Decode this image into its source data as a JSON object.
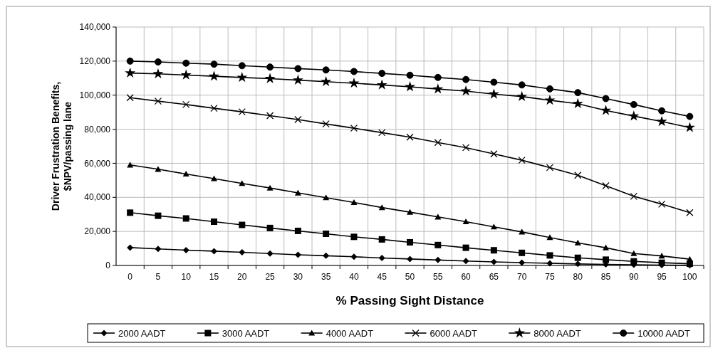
{
  "chart_data": {
    "type": "line",
    "xlabel": "% Passing Sight Distance",
    "ylabel": "Driver Frustration Benefits, $NPV/passing lane",
    "categories": [
      "0",
      "5",
      "10",
      "15",
      "20",
      "25",
      "30",
      "35",
      "40",
      "45",
      "50",
      "55",
      "60",
      "65",
      "70",
      "75",
      "80",
      "85",
      "90",
      "95",
      "100"
    ],
    "ylim": [
      0,
      140000
    ],
    "yticks": [
      {
        "value": 0,
        "label": "0"
      },
      {
        "value": 20000,
        "label": "20,000"
      },
      {
        "value": 40000,
        "label": "40,000"
      },
      {
        "value": 60000,
        "label": "60,000"
      },
      {
        "value": 80000,
        "label": "80,000"
      },
      {
        "value": 100000,
        "label": "100,000"
      },
      {
        "value": 120000,
        "label": "120,000"
      },
      {
        "value": 140000,
        "label": "140,000"
      }
    ],
    "grid": true,
    "legend": "bottom",
    "series": [
      {
        "name": "2000 AADT",
        "color": "#000000",
        "marker": "diamond",
        "values": [
          10500,
          9700,
          9000,
          8400,
          7700,
          7000,
          6300,
          5700,
          5100,
          4400,
          3800,
          3200,
          2600,
          2100,
          1700,
          1300,
          900,
          600,
          400,
          200,
          100
        ]
      },
      {
        "name": "3000 AADT",
        "color": "#000000",
        "marker": "square",
        "values": [
          31000,
          29200,
          27600,
          25700,
          23800,
          22000,
          20300,
          18600,
          16800,
          15300,
          13600,
          12000,
          10400,
          8900,
          7400,
          5900,
          4500,
          3400,
          2400,
          1600,
          1000
        ]
      },
      {
        "name": "4000 AADT",
        "color": "#000000",
        "marker": "triangle",
        "values": [
          59000,
          56500,
          53700,
          51000,
          48200,
          45500,
          42600,
          39800,
          37000,
          34000,
          31300,
          28500,
          25700,
          22700,
          19700,
          16400,
          13300,
          10400,
          7000,
          5600,
          3700
        ]
      },
      {
        "name": "6000 AADT",
        "color": "#000000",
        "marker": "cross",
        "values": [
          98500,
          96500,
          94500,
          92300,
          90200,
          88000,
          85700,
          83100,
          80600,
          78000,
          75300,
          72200,
          69200,
          65500,
          61800,
          57500,
          53000,
          46800,
          40600,
          36000,
          31000
        ]
      },
      {
        "name": "8000 AADT",
        "color": "#000000",
        "marker": "star",
        "values": [
          113000,
          112500,
          111800,
          111100,
          110400,
          109700,
          108800,
          107900,
          107000,
          106000,
          104900,
          103600,
          102400,
          100600,
          99200,
          97000,
          95000,
          91000,
          87700,
          84500,
          81000
        ]
      },
      {
        "name": "10000 AADT",
        "color": "#000000",
        "marker": "circle",
        "values": [
          120000,
          119500,
          118800,
          118200,
          117300,
          116500,
          115600,
          114800,
          113900,
          112800,
          111700,
          110400,
          109200,
          107600,
          106000,
          103700,
          101500,
          98000,
          94500,
          90800,
          87500
        ]
      }
    ]
  }
}
